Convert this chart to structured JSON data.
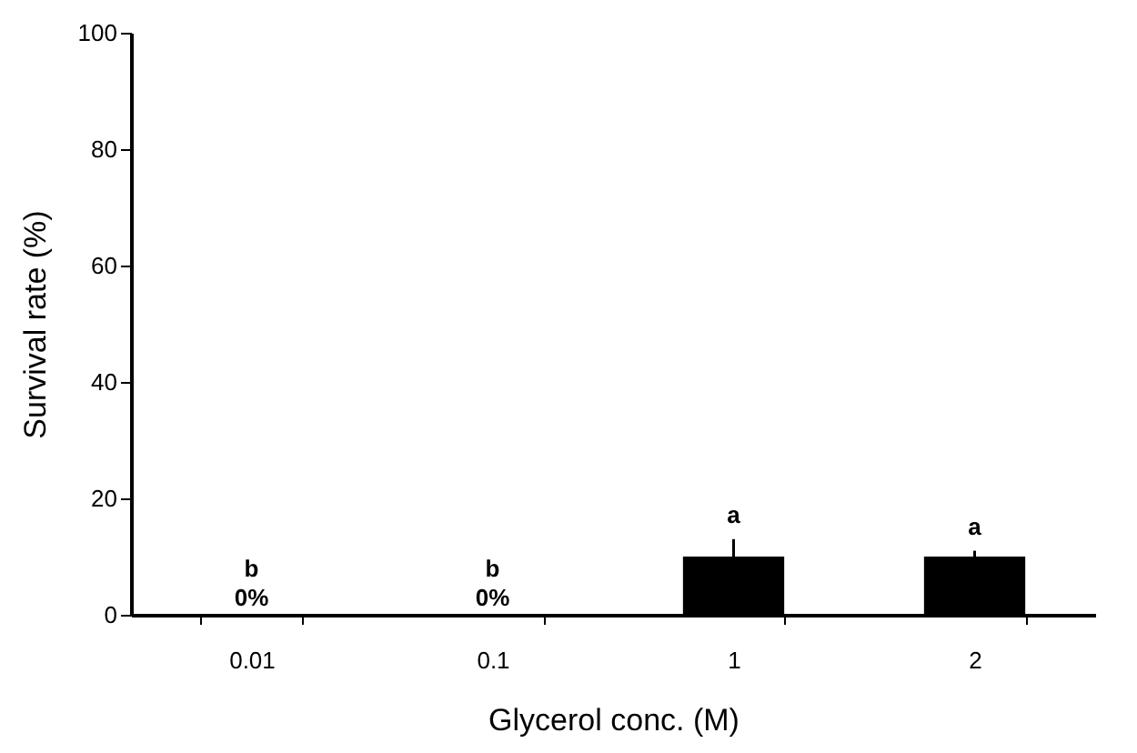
{
  "chart_data": {
    "type": "bar",
    "xlabel": "Glycerol conc. (M)",
    "ylabel": "Survival rate (%)",
    "categories": [
      "0.01",
      "0.1",
      "1",
      "2"
    ],
    "values": [
      0,
      0,
      10,
      10
    ],
    "color": "#000000",
    "errors": [
      null,
      null,
      3,
      1
    ],
    "value_labels": [
      "0%",
      "0%",
      null,
      null
    ],
    "annotations": [
      "b",
      "b",
      "a",
      "a"
    ],
    "ylim": [
      0,
      100
    ],
    "yticks": [
      0,
      20,
      40,
      60,
      80,
      100
    ],
    "grid": false
  }
}
